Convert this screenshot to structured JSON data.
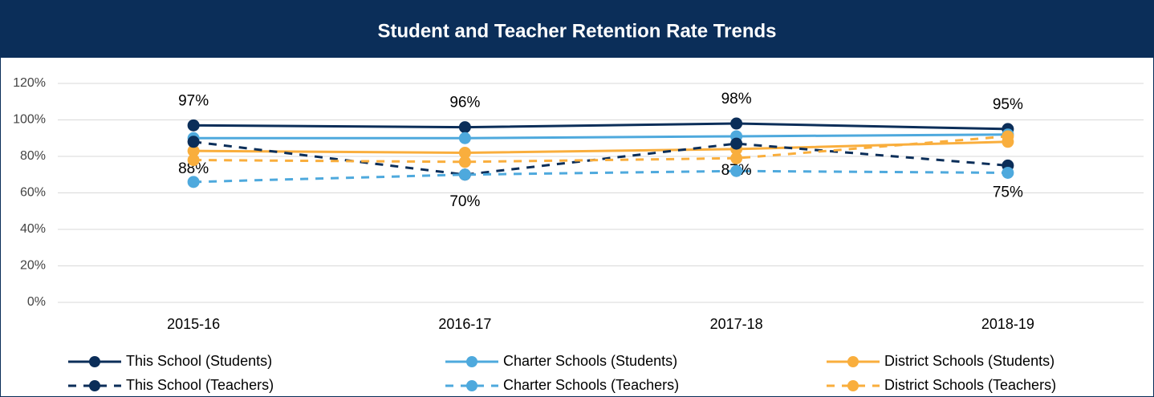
{
  "chart_data": {
    "type": "line",
    "title": "Student and Teacher Retention Rate Trends",
    "categories": [
      "2015-16",
      "2016-17",
      "2017-18",
      "2018-19"
    ],
    "series": [
      {
        "name": "This School (Students)",
        "color": "#0b2e59",
        "style": "solid",
        "values": [
          97,
          96,
          98,
          95
        ],
        "value_labels": [
          "97%",
          "96%",
          "98%",
          "95%"
        ],
        "label_position": "above"
      },
      {
        "name": "Charter Schools (Students)",
        "color": "#4ea9dd",
        "style": "solid",
        "values": [
          90,
          90,
          91,
          92
        ]
      },
      {
        "name": "District Schools (Students)",
        "color": "#f9ae3d",
        "style": "solid",
        "values": [
          83,
          82,
          84,
          88
        ]
      },
      {
        "name": "This School (Teachers)",
        "color": "#0b2e59",
        "style": "dashed",
        "values": [
          88,
          70,
          87,
          75
        ],
        "value_labels": [
          "88%",
          "70%",
          "87%",
          "75%"
        ],
        "label_position": "below"
      },
      {
        "name": "Charter Schools (Teachers)",
        "color": "#4ea9dd",
        "style": "dashed",
        "values": [
          66,
          70,
          72,
          71
        ]
      },
      {
        "name": "District Schools (Teachers)",
        "color": "#f9ae3d",
        "style": "dashed",
        "values": [
          78,
          77,
          79,
          91
        ]
      }
    ],
    "ylim": [
      0,
      120
    ],
    "yticks": [
      {
        "value": 0,
        "label": "0%"
      },
      {
        "value": 20,
        "label": "20%"
      },
      {
        "value": 40,
        "label": "40%"
      },
      {
        "value": 60,
        "label": "60%"
      },
      {
        "value": 80,
        "label": "80%"
      },
      {
        "value": 100,
        "label": "100%"
      },
      {
        "value": 120,
        "label": "120%"
      }
    ],
    "grid": true
  }
}
